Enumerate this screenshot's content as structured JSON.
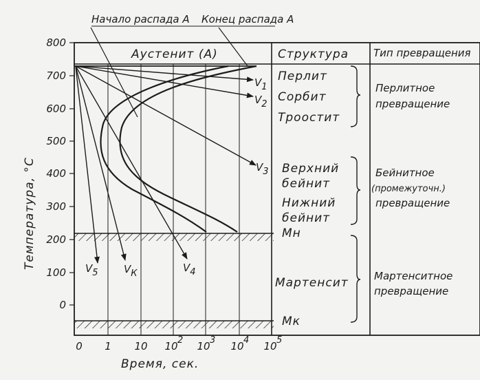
{
  "title_start": "Начало распада А",
  "title_end": "Конец распада А",
  "austenite": "Аустенит (А)",
  "col_structure": "Структура",
  "col_type": "Тип превращения",
  "y_label": "Температура, °С",
  "x_label": "Время, сек.",
  "y_ticks": [
    "800",
    "700",
    "600",
    "500",
    "400",
    "300",
    "200",
    "100",
    "0"
  ],
  "x_ticks": [
    "0",
    "1",
    "10",
    "10",
    "10",
    "10",
    "10"
  ],
  "x_exp": [
    "2",
    "3",
    "4",
    "5"
  ],
  "mn": "Мн",
  "mk": "Мк",
  "structures": {
    "perlit": "Перлит",
    "sorbit": "Сорбит",
    "troostit": "Троостит",
    "upper_bainite_1": "Верхний",
    "upper_bainite_2": "бейнит",
    "lower_bainite_1": "Нижний",
    "lower_bainite_2": "бейнит",
    "martensite": "Мартенсит"
  },
  "types": {
    "pearlite_1": "Перлитное",
    "pearlite_2": "превращение",
    "bainite_1": "Бейнитное",
    "bainite_2": "(промежуточн.)",
    "bainite_3": "превращение",
    "martensite_1": "Мартенситное",
    "martensite_2": "превращение"
  },
  "curves": {
    "v1": "V",
    "v1_sub": "1",
    "v2": "V",
    "v2_sub": "2",
    "v3": "V",
    "v3_sub": "3",
    "v4": "V",
    "v4_sub": "4",
    "v5": "V",
    "v5_sub": "5",
    "vk": "V",
    "vk_sub": "К"
  }
}
